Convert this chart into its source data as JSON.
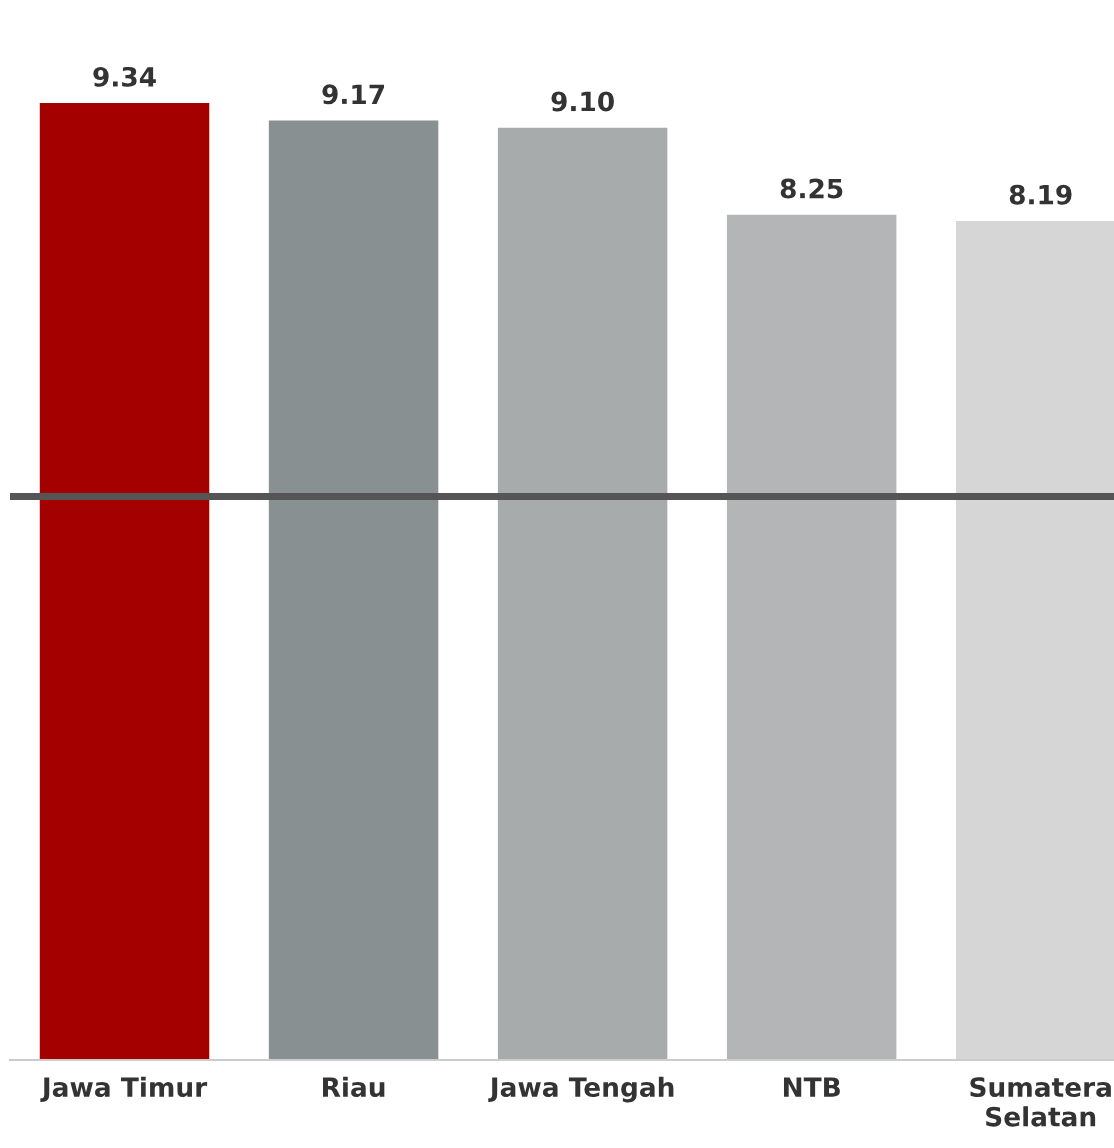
{
  "chart_data": {
    "type": "bar",
    "categories": [
      "Jawa Timur",
      "Riau",
      "Jawa Tengah",
      "NTB",
      "Sumatera\nSelatan"
    ],
    "values": [
      9.34,
      9.17,
      9.1,
      8.25,
      8.19
    ],
    "colors": [
      "#a50000",
      "#899091",
      "#a8abac",
      "#b3b5b6",
      "#d6d6d6"
    ],
    "value_labels": [
      "9.34",
      "9.17",
      "9.10",
      "8.25",
      "8.19"
    ],
    "ref_lines": [
      {
        "axis": "y",
        "value": 5.5,
        "color": "#555555"
      }
    ],
    "grid": false,
    "legend": false
  }
}
